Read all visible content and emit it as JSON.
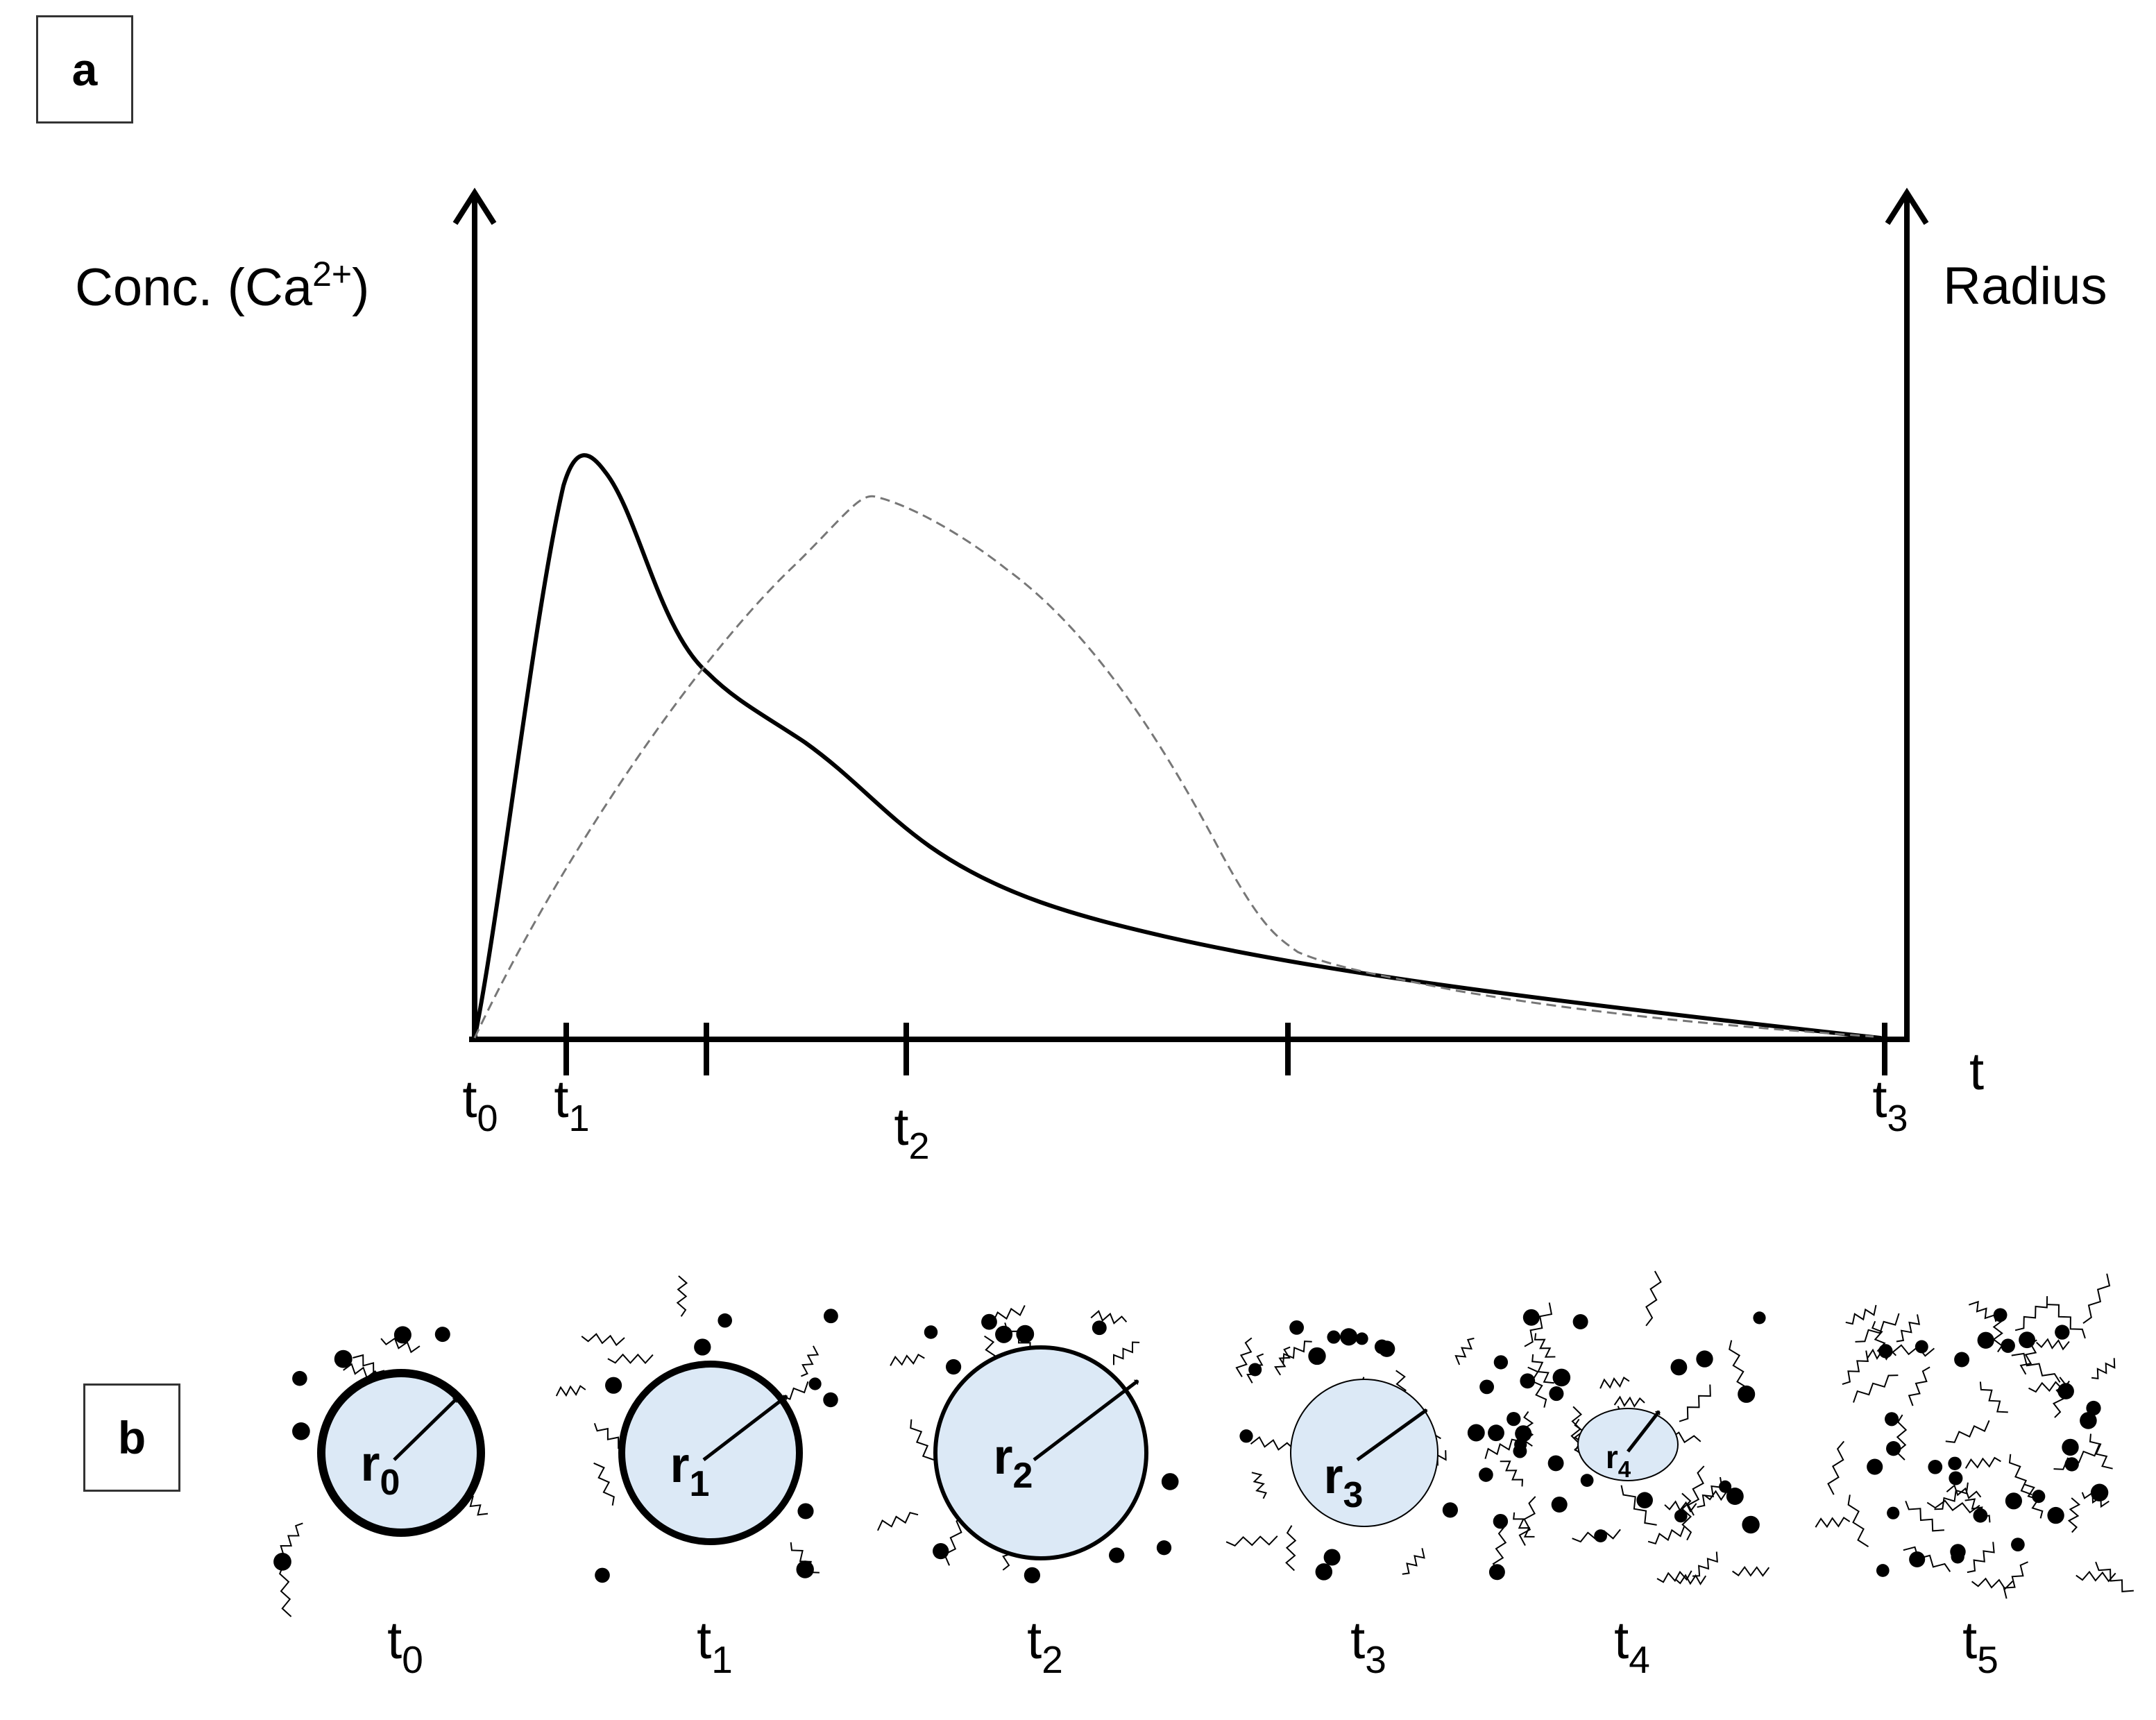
{
  "panel_a": {
    "label": "a",
    "left_axis_label": "Conc. (Ca",
    "left_axis_superscript": "2+",
    "left_axis_suffix": ")",
    "right_axis_label": "Radius",
    "x_axis_label": "t",
    "ticks": [
      {
        "base": "t",
        "sub": "0"
      },
      {
        "base": "t",
        "sub": "1"
      },
      {
        "base": "",
        "sub": ""
      },
      {
        "base": "t",
        "sub": "2"
      },
      {
        "base": "",
        "sub": ""
      },
      {
        "base": "t",
        "sub": "3"
      }
    ],
    "curves": [
      {
        "name": "Conc. (Ca2+)",
        "style": "solid",
        "color": "#000000"
      },
      {
        "name": "Radius",
        "style": "dashed",
        "color": "#777777"
      }
    ]
  },
  "panel_b": {
    "label": "b",
    "stages": [
      {
        "time_base": "t",
        "time_sub": "0",
        "radius_base": "r",
        "radius_sub": "0",
        "fill": "#dce9f6"
      },
      {
        "time_base": "t",
        "time_sub": "1",
        "radius_base": "r",
        "radius_sub": "1",
        "fill": "#dce9f6"
      },
      {
        "time_base": "t",
        "time_sub": "2",
        "radius_base": "r",
        "radius_sub": "2",
        "fill": "#dce9f6"
      },
      {
        "time_base": "t",
        "time_sub": "3",
        "radius_base": "r",
        "radius_sub": "3",
        "fill": "#dce9f6"
      },
      {
        "time_base": "t",
        "time_sub": "4",
        "radius_base": "r",
        "radius_sub": "4",
        "fill": "#dce9f6"
      },
      {
        "time_base": "t",
        "time_sub": "5",
        "radius_base": "",
        "radius_sub": "",
        "fill": ""
      }
    ]
  }
}
